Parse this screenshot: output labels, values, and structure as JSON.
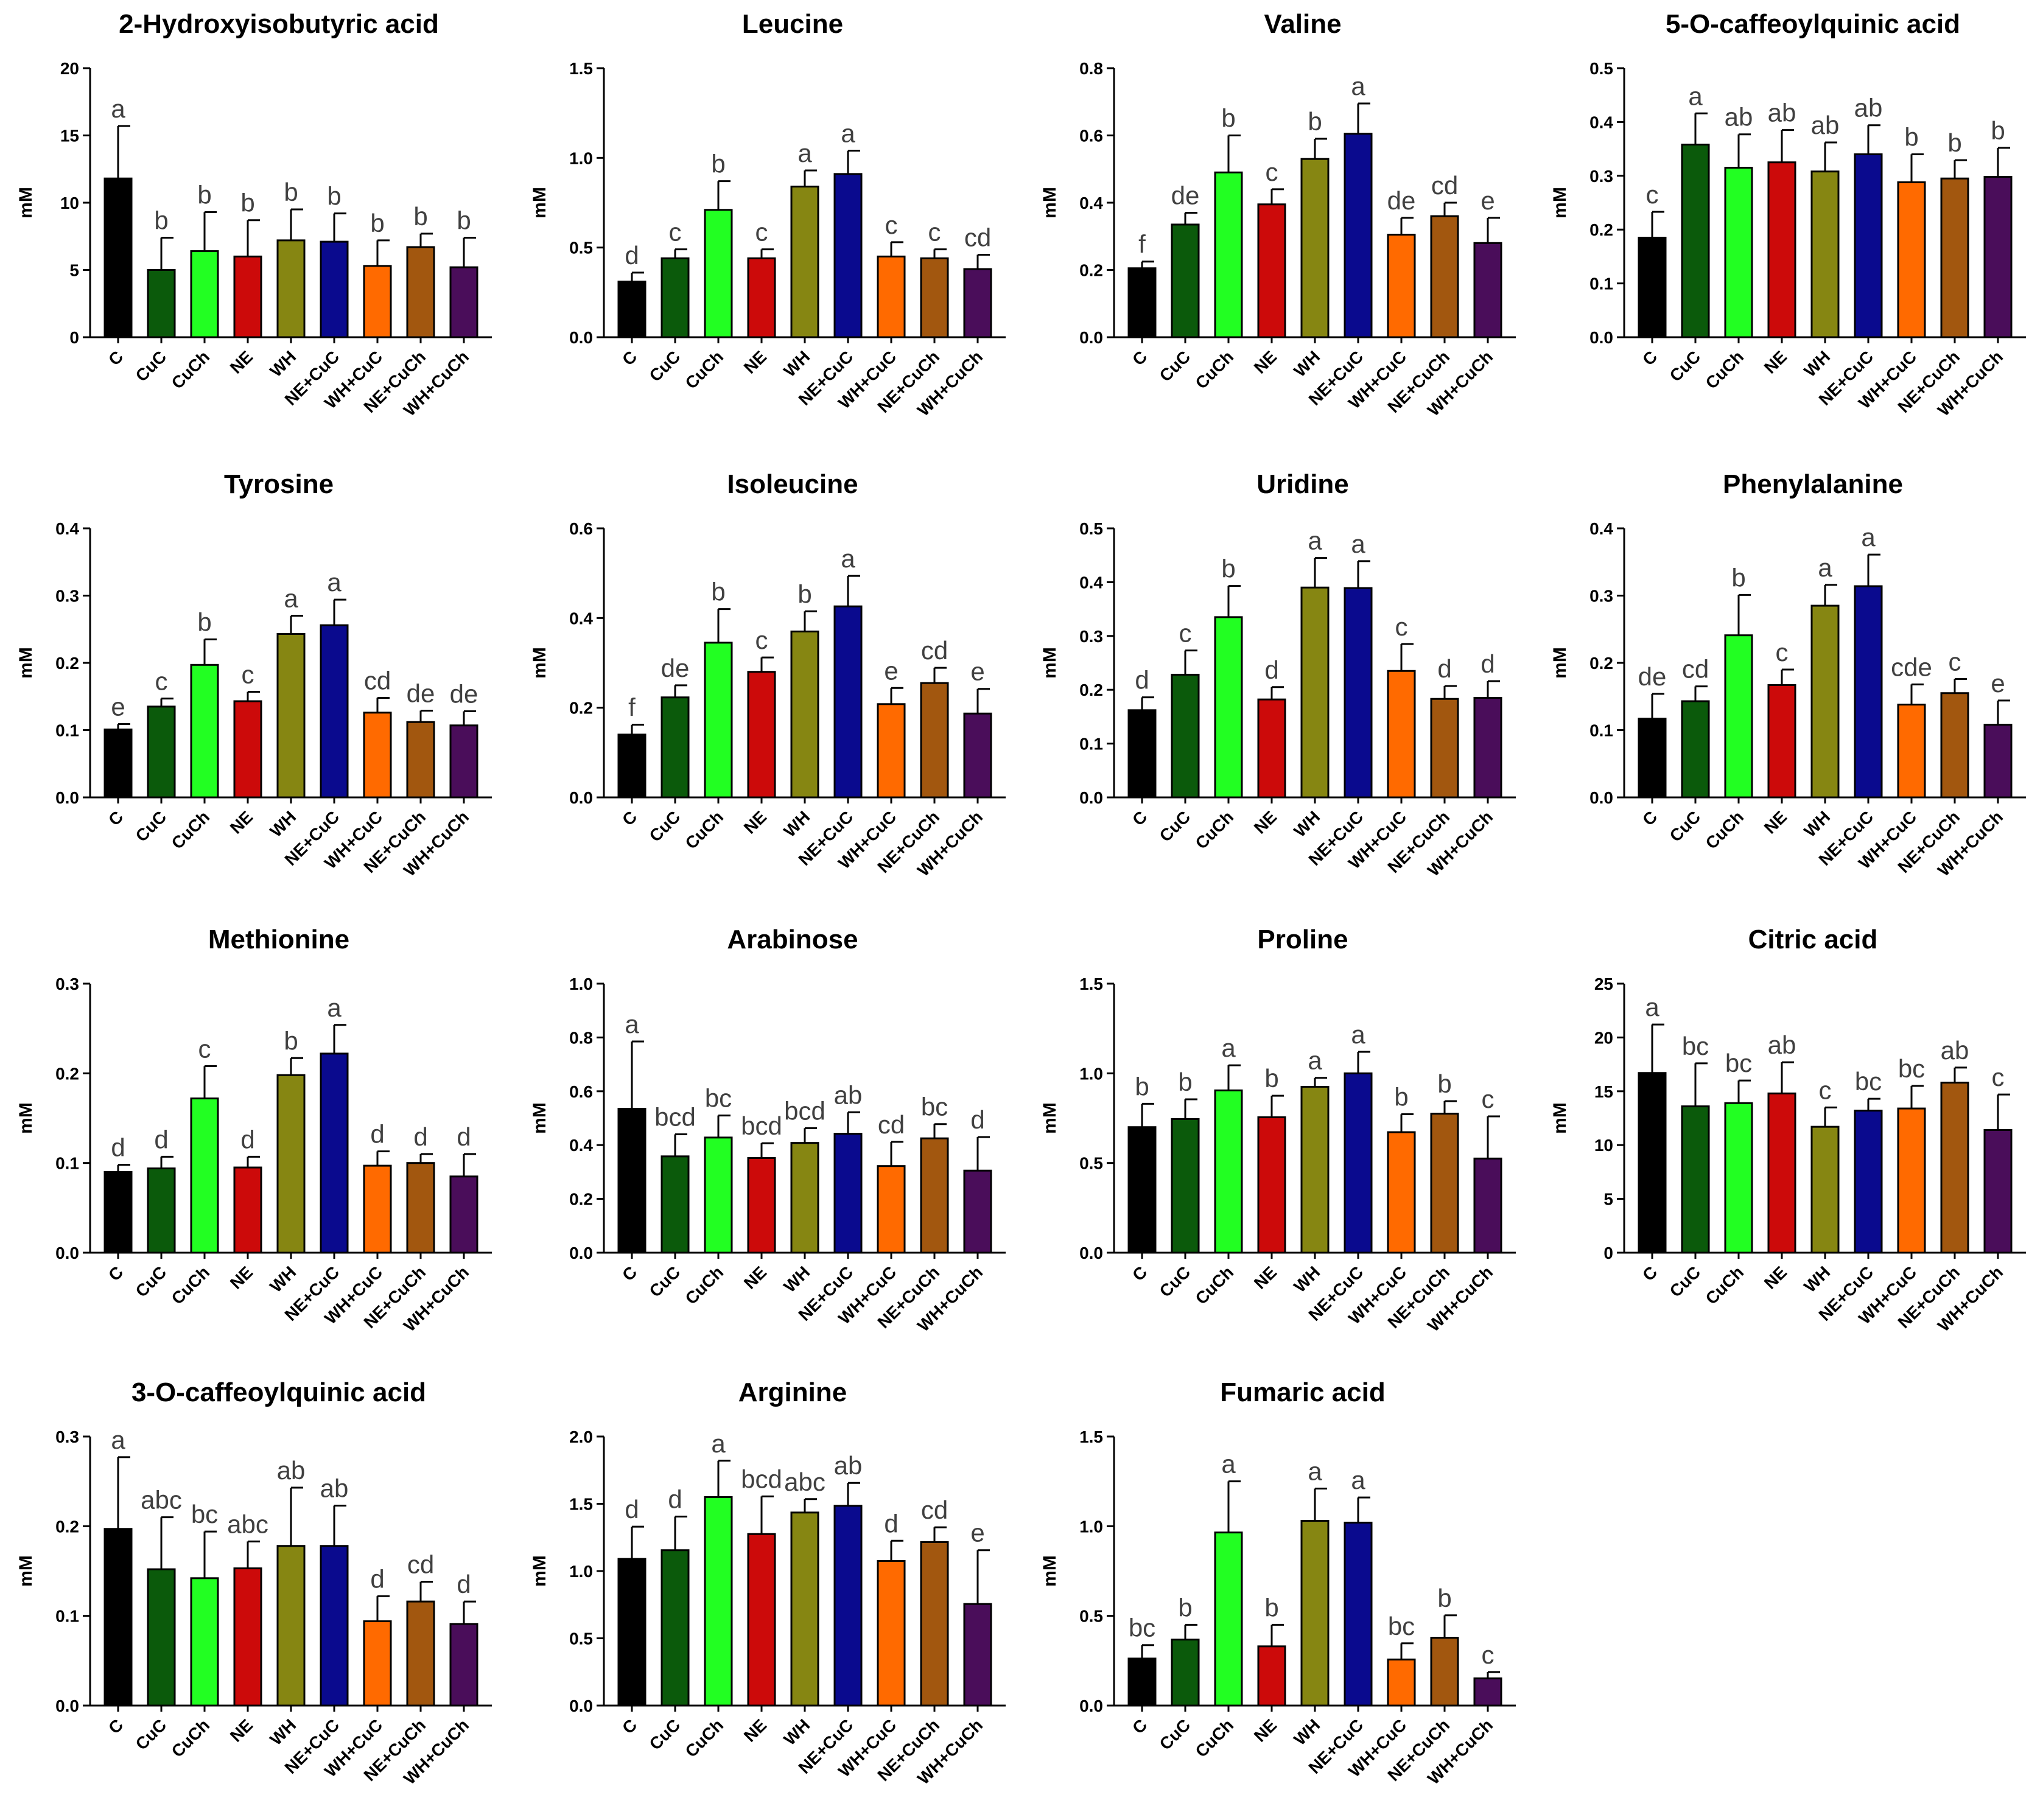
{
  "chart_data": [
    {
      "type": "bar",
      "title": "2-Hydroxyisobutyric acid",
      "ylabel": "mM",
      "ylim": [
        0,
        20
      ],
      "yticks": [
        "0",
        "5",
        "10",
        "15",
        "20"
      ],
      "categories": [
        "C",
        "CuC",
        "CuCh",
        "NE",
        "WH",
        "NE+CuC",
        "WH+CuC",
        "NE+CuCh",
        "WH+CuCh"
      ],
      "values": [
        11.8,
        5.0,
        6.4,
        6.0,
        7.2,
        7.1,
        5.3,
        6.7,
        5.2
      ],
      "errors": [
        3.9,
        2.4,
        2.9,
        2.7,
        2.3,
        2.1,
        1.9,
        1.0,
        2.2
      ],
      "letters": [
        "a",
        "b",
        "b",
        "b",
        "b",
        "b",
        "b",
        "b",
        "b"
      ]
    },
    {
      "type": "bar",
      "title": "Leucine",
      "ylabel": "mM",
      "ylim": [
        0,
        1.5
      ],
      "yticks": [
        "0.0",
        "0.5",
        "1.0",
        "1.5"
      ],
      "categories": [
        "C",
        "CuC",
        "CuCh",
        "NE",
        "WH",
        "NE+CuC",
        "WH+CuC",
        "NE+CuCh",
        "WH+CuCh"
      ],
      "values": [
        0.31,
        0.44,
        0.71,
        0.44,
        0.84,
        0.91,
        0.45,
        0.44,
        0.38
      ],
      "errors": [
        0.05,
        0.05,
        0.16,
        0.05,
        0.09,
        0.13,
        0.08,
        0.05,
        0.08
      ],
      "letters": [
        "d",
        "c",
        "b",
        "c",
        "a",
        "a",
        "c",
        "c",
        "cd"
      ]
    },
    {
      "type": "bar",
      "title": "Valine",
      "ylabel": "mM",
      "ylim": [
        0,
        0.8
      ],
      "yticks": [
        "0.0",
        "0.2",
        "0.4",
        "0.6",
        "0.8"
      ],
      "categories": [
        "C",
        "CuC",
        "CuCh",
        "NE",
        "WH",
        "NE+CuC",
        "WH+CuC",
        "NE+CuCh",
        "WH+CuCh"
      ],
      "values": [
        0.205,
        0.335,
        0.49,
        0.395,
        0.53,
        0.605,
        0.305,
        0.36,
        0.28
      ],
      "errors": [
        0.02,
        0.035,
        0.11,
        0.045,
        0.06,
        0.09,
        0.05,
        0.04,
        0.075
      ],
      "letters": [
        "f",
        "de",
        "b",
        "c",
        "b",
        "a",
        "de",
        "cd",
        "e"
      ]
    },
    {
      "type": "bar",
      "title": "5-O-caffeoylquinic acid",
      "ylabel": "mM",
      "ylim": [
        0,
        0.5
      ],
      "yticks": [
        "0.0",
        "0.1",
        "0.2",
        "0.3",
        "0.4",
        "0.5"
      ],
      "categories": [
        "C",
        "CuC",
        "CuCh",
        "NE",
        "WH",
        "NE+CuC",
        "WH+CuC",
        "NE+CuCh",
        "WH+CuCh"
      ],
      "values": [
        0.185,
        0.358,
        0.315,
        0.325,
        0.308,
        0.34,
        0.288,
        0.295,
        0.298
      ],
      "errors": [
        0.048,
        0.058,
        0.062,
        0.06,
        0.054,
        0.054,
        0.052,
        0.034,
        0.054
      ],
      "letters": [
        "c",
        "a",
        "ab",
        "ab",
        "ab",
        "ab",
        "b",
        "b",
        "b"
      ]
    },
    {
      "type": "bar",
      "title": "Tyrosine",
      "ylabel": "mM",
      "ylim": [
        0,
        0.4
      ],
      "yticks": [
        "0.0",
        "0.1",
        "0.2",
        "0.3",
        "0.4"
      ],
      "categories": [
        "C",
        "CuC",
        "CuCh",
        "NE",
        "WH",
        "NE+CuC",
        "WH+CuC",
        "NE+CuCh",
        "WH+CuCh"
      ],
      "values": [
        0.101,
        0.135,
        0.197,
        0.143,
        0.243,
        0.256,
        0.126,
        0.112,
        0.107
      ],
      "errors": [
        0.008,
        0.012,
        0.038,
        0.014,
        0.027,
        0.038,
        0.022,
        0.017,
        0.021
      ],
      "letters": [
        "e",
        "c",
        "b",
        "c",
        "a",
        "a",
        "cd",
        "de",
        "de"
      ]
    },
    {
      "type": "bar",
      "title": "Isoleucine",
      "ylabel": "mM",
      "ylim": [
        0,
        0.6
      ],
      "yticks": [
        "0.0",
        "0.2",
        "0.4",
        "0.6"
      ],
      "categories": [
        "C",
        "CuC",
        "CuCh",
        "NE",
        "WH",
        "NE+CuC",
        "WH+CuC",
        "NE+CuCh",
        "WH+CuCh"
      ],
      "values": [
        0.14,
        0.223,
        0.345,
        0.28,
        0.37,
        0.426,
        0.208,
        0.255,
        0.187
      ],
      "errors": [
        0.022,
        0.027,
        0.075,
        0.032,
        0.045,
        0.068,
        0.036,
        0.034,
        0.055
      ],
      "letters": [
        "f",
        "de",
        "b",
        "c",
        "b",
        "a",
        "e",
        "cd",
        "e"
      ]
    },
    {
      "type": "bar",
      "title": "Uridine",
      "ylabel": "mM",
      "ylim": [
        0,
        0.5
      ],
      "yticks": [
        "0.0",
        "0.1",
        "0.2",
        "0.3",
        "0.4",
        "0.5"
      ],
      "categories": [
        "C",
        "CuC",
        "CuCh",
        "NE",
        "WH",
        "NE+CuC",
        "WH+CuC",
        "NE+CuCh",
        "WH+CuCh"
      ],
      "values": [
        0.162,
        0.228,
        0.335,
        0.182,
        0.39,
        0.389,
        0.235,
        0.183,
        0.185
      ],
      "errors": [
        0.024,
        0.045,
        0.058,
        0.023,
        0.055,
        0.05,
        0.05,
        0.024,
        0.031
      ],
      "letters": [
        "d",
        "c",
        "b",
        "d",
        "a",
        "a",
        "c",
        "d",
        "d"
      ]
    },
    {
      "type": "bar",
      "title": "Phenylalanine",
      "ylabel": "mM",
      "ylim": [
        0,
        0.4
      ],
      "yticks": [
        "0.0",
        "0.1",
        "0.2",
        "0.3",
        "0.4"
      ],
      "categories": [
        "C",
        "CuC",
        "CuCh",
        "NE",
        "WH",
        "NE+CuC",
        "WH+CuC",
        "NE+CuCh",
        "WH+CuCh"
      ],
      "values": [
        0.117,
        0.143,
        0.241,
        0.167,
        0.285,
        0.314,
        0.138,
        0.155,
        0.108
      ],
      "errors": [
        0.037,
        0.022,
        0.06,
        0.023,
        0.031,
        0.047,
        0.03,
        0.021,
        0.036
      ],
      "letters": [
        "de",
        "cd",
        "b",
        "c",
        "a",
        "a",
        "cde",
        "c",
        "e"
      ]
    },
    {
      "type": "bar",
      "title": "Methionine",
      "ylabel": "mM",
      "ylim": [
        0,
        0.3
      ],
      "yticks": [
        "0.0",
        "0.1",
        "0.2",
        "0.3"
      ],
      "categories": [
        "C",
        "CuC",
        "CuCh",
        "NE",
        "WH",
        "NE+CuC",
        "WH+CuC",
        "NE+CuCh",
        "WH+CuCh"
      ],
      "values": [
        0.09,
        0.094,
        0.172,
        0.095,
        0.198,
        0.222,
        0.097,
        0.1,
        0.085
      ],
      "errors": [
        0.008,
        0.013,
        0.036,
        0.012,
        0.019,
        0.032,
        0.016,
        0.01,
        0.025
      ],
      "letters": [
        "d",
        "d",
        "c",
        "d",
        "b",
        "a",
        "d",
        "d",
        "d"
      ]
    },
    {
      "type": "bar",
      "title": "Arabinose",
      "ylabel": "mM",
      "ylim": [
        0,
        1.0
      ],
      "yticks": [
        "0.0",
        "0.2",
        "0.4",
        "0.6",
        "0.8",
        "1.0"
      ],
      "categories": [
        "C",
        "CuC",
        "CuCh",
        "NE",
        "WH",
        "NE+CuC",
        "WH+CuC",
        "NE+CuCh",
        "WH+CuCh"
      ],
      "values": [
        0.535,
        0.358,
        0.428,
        0.352,
        0.408,
        0.442,
        0.322,
        0.425,
        0.305
      ],
      "errors": [
        0.25,
        0.082,
        0.082,
        0.055,
        0.055,
        0.08,
        0.09,
        0.053,
        0.125
      ],
      "letters": [
        "a",
        "bcd",
        "bc",
        "bcd",
        "bcd",
        "ab",
        "cd",
        "bc",
        "d"
      ]
    },
    {
      "type": "bar",
      "title": "Proline",
      "ylabel": "mM",
      "ylim": [
        0,
        1.5
      ],
      "yticks": [
        "0.0",
        "0.5",
        "1.0",
        "1.5"
      ],
      "categories": [
        "C",
        "CuC",
        "CuCh",
        "NE",
        "WH",
        "NE+CuC",
        "WH+CuC",
        "NE+CuCh",
        "WH+CuCh"
      ],
      "values": [
        0.7,
        0.745,
        0.905,
        0.755,
        0.925,
        1.0,
        0.672,
        0.775,
        0.525
      ],
      "errors": [
        0.13,
        0.11,
        0.14,
        0.12,
        0.05,
        0.12,
        0.1,
        0.07,
        0.235
      ],
      "letters": [
        "b",
        "b",
        "a",
        "b",
        "a",
        "a",
        "b",
        "b",
        "c"
      ]
    },
    {
      "type": "bar",
      "title": "Citric acid",
      "ylabel": "mM",
      "ylim": [
        0,
        25
      ],
      "yticks": [
        "0",
        "5",
        "10",
        "15",
        "20",
        "25"
      ],
      "categories": [
        "C",
        "CuC",
        "CuCh",
        "NE",
        "WH",
        "NE+CuC",
        "WH+CuC",
        "NE+CuCh",
        "WH+CuCh"
      ],
      "values": [
        16.7,
        13.6,
        13.9,
        14.8,
        11.7,
        13.2,
        13.4,
        15.8,
        11.4
      ],
      "errors": [
        4.5,
        4.0,
        2.1,
        2.9,
        1.8,
        1.1,
        2.1,
        1.4,
        3.3
      ],
      "letters": [
        "a",
        "bc",
        "bc",
        "ab",
        "c",
        "bc",
        "bc",
        "ab",
        "c"
      ]
    },
    {
      "type": "bar",
      "title": "3-O-caffeoylquinic acid",
      "ylabel": "mM",
      "ylim": [
        0,
        0.3
      ],
      "yticks": [
        "0.0",
        "0.1",
        "0.2",
        "0.3"
      ],
      "categories": [
        "C",
        "CuC",
        "CuCh",
        "NE",
        "WH",
        "NE+CuC",
        "WH+CuC",
        "NE+CuCh",
        "WH+CuCh"
      ],
      "values": [
        0.197,
        0.152,
        0.142,
        0.153,
        0.178,
        0.178,
        0.094,
        0.116,
        0.091
      ],
      "errors": [
        0.08,
        0.058,
        0.052,
        0.03,
        0.065,
        0.045,
        0.028,
        0.022,
        0.025
      ],
      "letters": [
        "a",
        "abc",
        "bc",
        "abc",
        "ab",
        "ab",
        "d",
        "cd",
        "d"
      ]
    },
    {
      "type": "bar",
      "title": "Arginine",
      "ylabel": "mM",
      "ylim": [
        0,
        2.0
      ],
      "yticks": [
        "0.0",
        "0.5",
        "1.0",
        "1.5",
        "2.0"
      ],
      "categories": [
        "C",
        "CuC",
        "CuCh",
        "NE",
        "WH",
        "NE+CuC",
        "WH+CuC",
        "NE+CuCh",
        "WH+CuCh"
      ],
      "values": [
        1.09,
        1.155,
        1.55,
        1.275,
        1.435,
        1.485,
        1.075,
        1.215,
        0.755
      ],
      "errors": [
        0.24,
        0.25,
        0.27,
        0.28,
        0.1,
        0.17,
        0.15,
        0.11,
        0.4
      ],
      "letters": [
        "d",
        "d",
        "a",
        "bcd",
        "abc",
        "ab",
        "d",
        "cd",
        "e"
      ]
    },
    {
      "type": "bar",
      "title": "Fumaric acid",
      "ylabel": "mM",
      "ylim": [
        0,
        1.5
      ],
      "yticks": [
        "0.0",
        "0.5",
        "1.0",
        "1.5"
      ],
      "categories": [
        "C",
        "CuC",
        "CuCh",
        "NE",
        "WH",
        "NE+CuC",
        "WH+CuC",
        "NE+CuCh",
        "WH+CuCh"
      ],
      "values": [
        0.262,
        0.368,
        0.965,
        0.33,
        1.03,
        1.02,
        0.257,
        0.378,
        0.152
      ],
      "errors": [
        0.075,
        0.082,
        0.285,
        0.12,
        0.18,
        0.14,
        0.09,
        0.125,
        0.035
      ],
      "letters": [
        "bc",
        "b",
        "a",
        "b",
        "a",
        "a",
        "bc",
        "b",
        "c"
      ]
    }
  ],
  "series_colors": [
    "#000000",
    "#0b5a0b",
    "#22ff22",
    "#cc0a0a",
    "#868612",
    "#0a0a8e",
    "#ff6a00",
    "#a2570f",
    "#4a0d5a"
  ]
}
